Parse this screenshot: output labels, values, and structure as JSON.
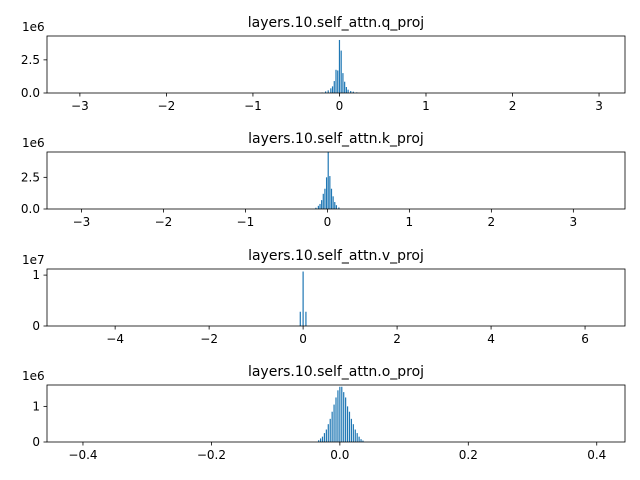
{
  "chart_data": [
    {
      "type": "bar",
      "title": "layers.10.self_attn.q_proj",
      "xlabel": "",
      "ylabel": "",
      "xlim": [
        -3.38,
        3.3
      ],
      "ylim": [
        0,
        4.3
      ],
      "x_ticks": [
        -3,
        -2,
        -1,
        0,
        1,
        2,
        3
      ],
      "y_ticks": [
        0.0,
        2.5
      ],
      "y_tick_labels": [
        "0.0",
        "2.5"
      ],
      "y_multiplier_label": "1e6",
      "bar_color": "#1f77b4",
      "x": [
        -0.2,
        -0.16,
        -0.13,
        -0.1,
        -0.08,
        -0.06,
        -0.04,
        -0.02,
        0.0,
        0.02,
        0.04,
        0.06,
        0.08,
        0.1,
        0.13,
        0.16,
        0.2
      ],
      "values": [
        0.04,
        0.12,
        0.2,
        0.35,
        0.5,
        0.9,
        1.75,
        1.7,
        4.0,
        3.2,
        1.5,
        0.85,
        0.45,
        0.25,
        0.15,
        0.1,
        0.05
      ]
    },
    {
      "type": "bar",
      "title": "layers.10.self_attn.k_proj",
      "xlabel": "",
      "ylabel": "",
      "xlim": [
        -3.42,
        3.63
      ],
      "ylim": [
        0,
        4.5
      ],
      "x_ticks": [
        -3,
        -2,
        -1,
        0,
        1,
        2,
        3
      ],
      "y_ticks": [
        0.0,
        2.5
      ],
      "y_tick_labels": [
        "0.0",
        "2.5"
      ],
      "y_multiplier_label": "1e6",
      "bar_color": "#1f77b4",
      "x": [
        -0.14,
        -0.11,
        -0.09,
        -0.07,
        -0.05,
        -0.03,
        -0.01,
        0.01,
        0.03,
        0.05,
        0.07,
        0.09,
        0.11,
        0.14
      ],
      "values": [
        0.1,
        0.25,
        0.4,
        0.7,
        1.2,
        1.6,
        2.5,
        4.5,
        2.6,
        1.6,
        1.0,
        0.55,
        0.3,
        0.12
      ]
    },
    {
      "type": "bar",
      "title": "layers.10.self_attn.v_proj",
      "xlabel": "",
      "ylabel": "",
      "xlim": [
        -5.45,
        6.85
      ],
      "ylim": [
        0,
        1.12
      ],
      "x_ticks": [
        -4,
        -2,
        0,
        2,
        4,
        6
      ],
      "y_ticks": [
        0,
        1
      ],
      "y_tick_labels": [
        "0",
        "1"
      ],
      "y_multiplier_label": "1e7",
      "bar_color": "#1f77b4",
      "x": [
        -0.06,
        0.0,
        0.06
      ],
      "values": [
        0.28,
        1.07,
        0.28
      ]
    },
    {
      "type": "bar",
      "title": "layers.10.self_attn.o_proj",
      "xlabel": "",
      "ylabel": "",
      "xlim": [
        -0.456,
        0.444
      ],
      "ylim": [
        0,
        1.6
      ],
      "x_ticks": [
        -0.4,
        -0.2,
        0.0,
        0.2,
        0.4
      ],
      "x_tick_labels": [
        "−0.4",
        "−0.2",
        "0.0",
        "0.2",
        "0.4"
      ],
      "y_ticks": [
        0,
        1
      ],
      "y_tick_labels": [
        "0",
        "1"
      ],
      "y_multiplier_label": "1e6",
      "bar_color": "#1f77b4",
      "x": [
        -0.033,
        -0.03,
        -0.027,
        -0.024,
        -0.021,
        -0.018,
        -0.015,
        -0.012,
        -0.009,
        -0.006,
        -0.003,
        0.0,
        0.003,
        0.006,
        0.009,
        0.012,
        0.015,
        0.018,
        0.021,
        0.024,
        0.027,
        0.03,
        0.033,
        0.036
      ],
      "values": [
        0.05,
        0.1,
        0.15,
        0.25,
        0.35,
        0.5,
        0.65,
        0.85,
        1.05,
        1.25,
        1.45,
        1.55,
        1.55,
        1.4,
        1.25,
        1.0,
        0.85,
        0.65,
        0.5,
        0.35,
        0.25,
        0.15,
        0.08,
        0.04
      ]
    }
  ]
}
